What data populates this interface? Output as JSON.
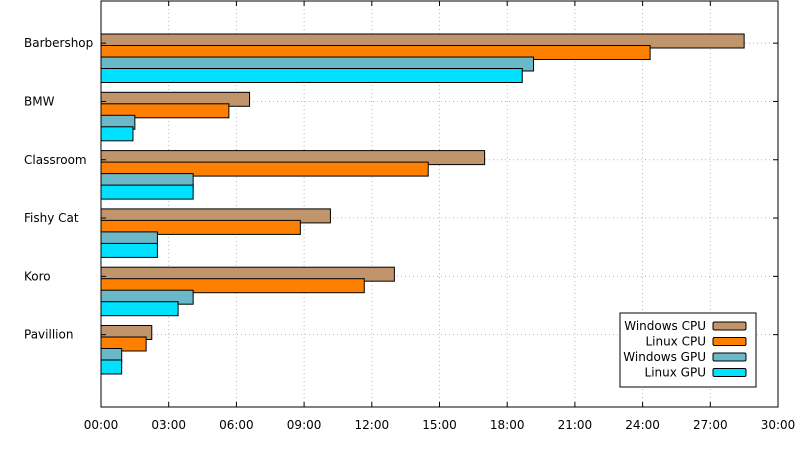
{
  "chart_data": {
    "type": "bar",
    "orientation": "horizontal",
    "title": "",
    "xlabel": "",
    "ylabel": "",
    "x_unit": "minutes",
    "xlim": [
      0,
      1800
    ],
    "x_ticks": [
      "00:00",
      "03:00",
      "06:00",
      "09:00",
      "12:00",
      "15:00",
      "18:00",
      "21:00",
      "24:00",
      "27:00",
      "30:00"
    ],
    "grid": true,
    "legend_position": "bottom-right",
    "categories": [
      "Barbershop",
      "BMW",
      "Classroom",
      "Fishy Cat",
      "Koro",
      "Pavillion"
    ],
    "series": [
      {
        "name": "Windows CPU",
        "color": "#c0956b",
        "values": [
          1710,
          395,
          1020,
          610,
          780,
          135
        ]
      },
      {
        "name": "Linux CPU",
        "color": "#ff7f00",
        "values": [
          1460,
          340,
          870,
          530,
          700,
          120
        ]
      },
      {
        "name": "Windows GPU",
        "color": "#6ab8c8",
        "values": [
          1150,
          90,
          245,
          150,
          245,
          55
        ]
      },
      {
        "name": "Linux GPU",
        "color": "#00e1ff",
        "values": [
          1120,
          85,
          245,
          150,
          205,
          55
        ]
      }
    ]
  }
}
